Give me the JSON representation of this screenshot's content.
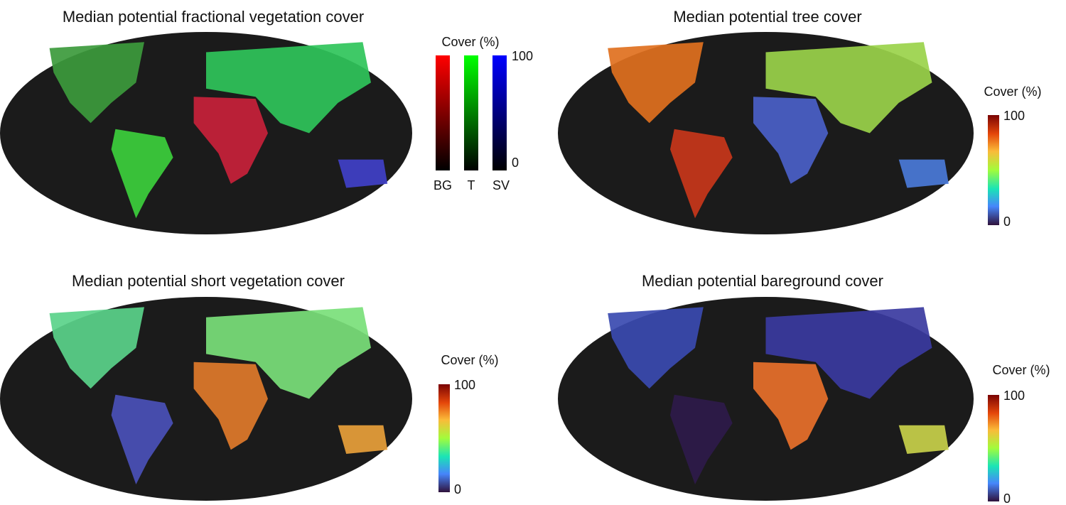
{
  "panels": [
    {
      "title": "Median potential fractional vegetation cover",
      "legend": {
        "title": "Cover (%)",
        "max": 100,
        "min": 0,
        "channels": [
          "BG",
          "T",
          "SV"
        ]
      }
    },
    {
      "title": "Median potential tree cover",
      "legend": {
        "title": "Cover (%)",
        "max": 100,
        "min": 0
      }
    },
    {
      "title": "Median potential short vegetation cover",
      "legend": {
        "title": "Cover (%)",
        "max": 100,
        "min": 0
      }
    },
    {
      "title": "Median potential bareground cover",
      "legend": {
        "title": "Cover (%)",
        "max": 100,
        "min": 0
      }
    }
  ]
}
